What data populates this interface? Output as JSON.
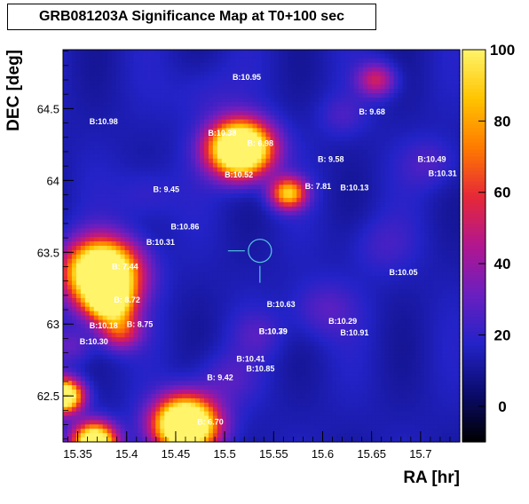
{
  "colors": {
    "background": "#ffffff",
    "frame": "#000000",
    "marker": "#55c8e0",
    "label": "#ffffff",
    "palette": [
      "#000000",
      "#0b0b6e",
      "#2323c8",
      "#6a1fc0",
      "#b21690",
      "#e62838",
      "#ff7a00",
      "#ffc400",
      "#fff46a"
    ]
  },
  "chart_data": {
    "type": "heatmap",
    "title": "GRB081203A Significance Map at T0+100 sec",
    "xlabel": "RA [hr]",
    "ylabel": "DEC [deg]",
    "xlim": [
      15.335,
      15.74
    ],
    "ylim": [
      62.18,
      64.91
    ],
    "zlim": [
      -10,
      100
    ],
    "x_ticks": [
      15.35,
      15.4,
      15.45,
      15.5,
      15.55,
      15.6,
      15.65,
      15.7
    ],
    "x_tick_labels": [
      "15.35",
      "15.4",
      "15.45",
      "15.5",
      "15.55",
      "15.6",
      "15.65",
      "15.7"
    ],
    "y_ticks": [
      62.5,
      63,
      63.5,
      64,
      64.5
    ],
    "y_tick_labels": [
      "62.5",
      "63",
      "63.5",
      "64",
      "64.5"
    ],
    "colorbar_ticks": [
      0,
      20,
      40,
      60,
      80,
      100
    ],
    "colorbar_tick_labels": [
      "0",
      "20",
      "40",
      "60",
      "80",
      "100"
    ],
    "grb_position": {
      "ra": 15.536,
      "dec": 63.51
    },
    "blobs": [
      {
        "ra": 15.516,
        "dec": 64.22,
        "amp": 150,
        "sigma": 0.13
      },
      {
        "ra": 15.565,
        "dec": 63.91,
        "amp": 75,
        "sigma": 0.075
      },
      {
        "ra": 15.375,
        "dec": 63.36,
        "amp": 145,
        "sigma": 0.15
      },
      {
        "ra": 15.382,
        "dec": 63.15,
        "amp": 85,
        "sigma": 0.1
      },
      {
        "ra": 15.393,
        "dec": 62.95,
        "amp": 45,
        "sigma": 0.09
      },
      {
        "ra": 15.46,
        "dec": 62.3,
        "amp": 150,
        "sigma": 0.13
      },
      {
        "ra": 15.367,
        "dec": 62.18,
        "amp": 120,
        "sigma": 0.09
      },
      {
        "ra": 15.335,
        "dec": 62.5,
        "amp": 125,
        "sigma": 0.08
      },
      {
        "ra": 15.655,
        "dec": 64.7,
        "amp": 38,
        "sigma": 0.08
      },
      {
        "ra": 15.62,
        "dec": 64.45,
        "amp": 10,
        "sigma": 0.1
      },
      {
        "ra": 15.5,
        "dec": 62.62,
        "amp": 12,
        "sigma": 0.13
      },
      {
        "ra": 15.345,
        "dec": 62.85,
        "amp": 16,
        "sigma": 0.09
      },
      {
        "ra": 15.6,
        "dec": 63.1,
        "amp": 14,
        "sigma": 0.14
      },
      {
        "ra": 15.42,
        "dec": 63.9,
        "amp": 10,
        "sigma": 0.13
      },
      {
        "ra": 15.71,
        "dec": 64.12,
        "amp": 12,
        "sigma": 0.12
      },
      {
        "ra": 15.66,
        "dec": 63.55,
        "amp": 9,
        "sigma": 0.14
      },
      {
        "ra": 15.535,
        "dec": 62.93,
        "amp": 10,
        "sigma": 0.11
      },
      {
        "ra": 15.48,
        "dec": 64.6,
        "amp": 8,
        "sigma": 0.15
      }
    ],
    "sources": [
      {
        "label": "B:10.95",
        "ra": 15.508,
        "dec": 64.7
      },
      {
        "label": "B:10.98",
        "ra": 15.362,
        "dec": 64.39
      },
      {
        "label": "B: 9.68",
        "ra": 15.637,
        "dec": 64.46
      },
      {
        "label": "B:10.38",
        "ra": 15.483,
        "dec": 64.31
      },
      {
        "label": "B: 6.98",
        "ra": 15.523,
        "dec": 64.24
      },
      {
        "label": "B:10.52",
        "ra": 15.5,
        "dec": 64.02
      },
      {
        "label": "B: 9.58",
        "ra": 15.595,
        "dec": 64.13
      },
      {
        "label": "B:10.49",
        "ra": 15.697,
        "dec": 64.13
      },
      {
        "label": "B:10.31",
        "ra": 15.708,
        "dec": 64.03
      },
      {
        "label": "B: 7.81",
        "ra": 15.582,
        "dec": 63.94
      },
      {
        "label": "B:10.13",
        "ra": 15.618,
        "dec": 63.93
      },
      {
        "label": "B: 9.45",
        "ra": 15.427,
        "dec": 63.92
      },
      {
        "label": "B:10.86",
        "ra": 15.445,
        "dec": 63.66
      },
      {
        "label": "B:10.31",
        "ra": 15.42,
        "dec": 63.55
      },
      {
        "label": "B: 7.44",
        "ra": 15.385,
        "dec": 63.38
      },
      {
        "label": "B:10.05",
        "ra": 15.668,
        "dec": 63.34
      },
      {
        "label": "B: 8.72",
        "ra": 15.387,
        "dec": 63.15
      },
      {
        "label": "B:10.63",
        "ra": 15.543,
        "dec": 63.12
      },
      {
        "label": "B:10.29",
        "ra": 15.606,
        "dec": 63.0
      },
      {
        "label": "B:10.18",
        "ra": 15.362,
        "dec": 62.97
      },
      {
        "label": "B: 8.75",
        "ra": 15.4,
        "dec": 62.98
      },
      {
        "label": "B:10.79",
        "ra": 15.535,
        "dec": 62.93
      },
      {
        "label": "B:10.39",
        "ra": 15.535,
        "dec": 62.93
      },
      {
        "label": "B:10.91",
        "ra": 15.618,
        "dec": 62.92
      },
      {
        "label": "B:10.30",
        "ra": 15.352,
        "dec": 62.86
      },
      {
        "label": "B:10.41",
        "ra": 15.512,
        "dec": 62.74
      },
      {
        "label": "B:10.85",
        "ra": 15.522,
        "dec": 62.67
      },
      {
        "label": "B: 9.42",
        "ra": 15.482,
        "dec": 62.61
      },
      {
        "label": "B: 6.70",
        "ra": 15.472,
        "dec": 62.3
      }
    ]
  }
}
